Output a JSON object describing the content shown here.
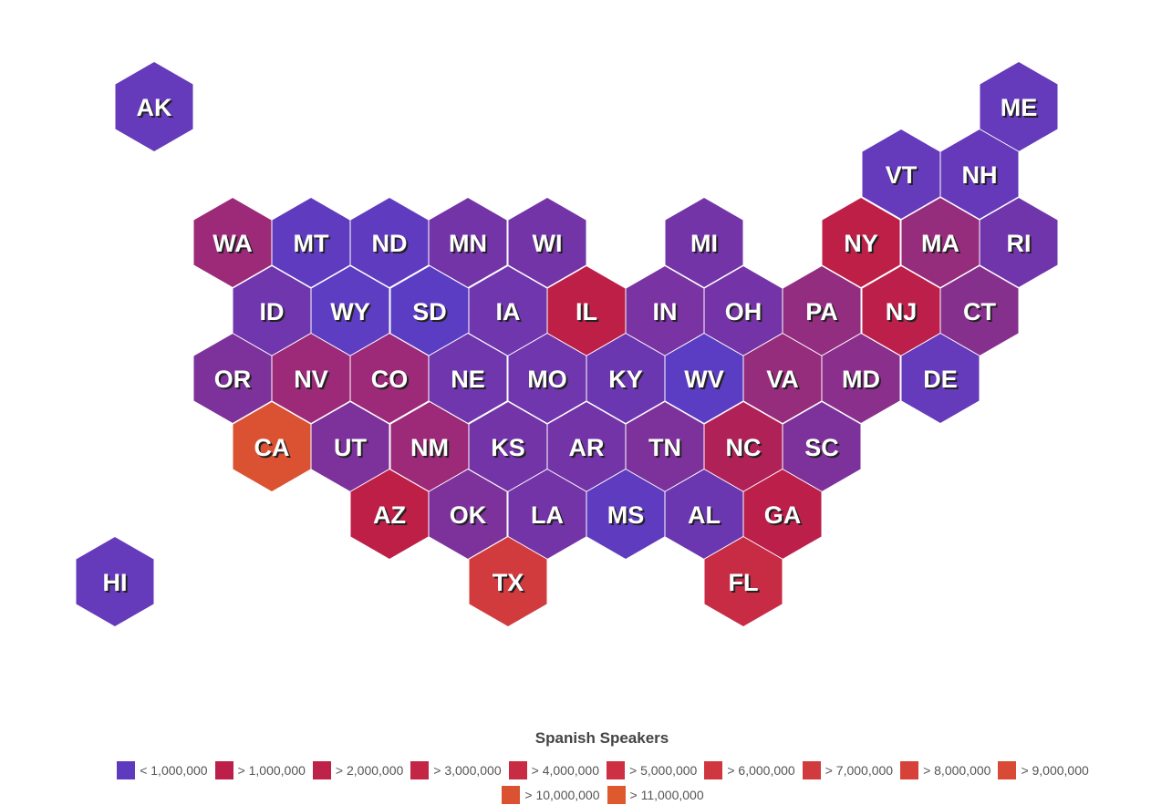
{
  "legend": {
    "title": "Spanish Speakers",
    "items": [
      {
        "label": "< 1,000,000",
        "color": "#5e3bbe"
      },
      {
        "label": "> 1,000,000",
        "color": "#bb1f4a"
      },
      {
        "label": "> 2,000,000",
        "color": "#bf2248"
      },
      {
        "label": "> 3,000,000",
        "color": "#c32645"
      },
      {
        "label": "> 4,000,000",
        "color": "#c82b44"
      },
      {
        "label": "> 5,000,000",
        "color": "#cc3042"
      },
      {
        "label": "> 6,000,000",
        "color": "#cf3640"
      },
      {
        "label": "> 7,000,000",
        "color": "#d23b3d"
      },
      {
        "label": "> 8,000,000",
        "color": "#d6423a"
      },
      {
        "label": "> 9,000,000",
        "color": "#d84a35"
      },
      {
        "label": "> 10,000,000",
        "color": "#db5232"
      },
      {
        "label": "> 11,000,000",
        "color": "#de5a2e"
      }
    ]
  },
  "states": [
    {
      "code": "AK",
      "color": "#653abb"
    },
    {
      "code": "ME",
      "color": "#653abb"
    },
    {
      "code": "VT",
      "color": "#653abb"
    },
    {
      "code": "NH",
      "color": "#6539b9"
    },
    {
      "code": "WA",
      "color": "#9c2a78"
    },
    {
      "code": "MT",
      "color": "#5f3cbf"
    },
    {
      "code": "ND",
      "color": "#5f3cbf"
    },
    {
      "code": "MN",
      "color": "#7334a8"
    },
    {
      "code": "WI",
      "color": "#7334a8"
    },
    {
      "code": "MI",
      "color": "#7334a8"
    },
    {
      "code": "NY",
      "color": "#bd1f47"
    },
    {
      "code": "MA",
      "color": "#962c7c"
    },
    {
      "code": "RI",
      "color": "#7135ab"
    },
    {
      "code": "ID",
      "color": "#6f36ad"
    },
    {
      "code": "WY",
      "color": "#5d3dc2"
    },
    {
      "code": "SD",
      "color": "#5b3dc4"
    },
    {
      "code": "IA",
      "color": "#6f36ad"
    },
    {
      "code": "IL",
      "color": "#bd1f47"
    },
    {
      "code": "IN",
      "color": "#7a33a2"
    },
    {
      "code": "OH",
      "color": "#7434a7"
    },
    {
      "code": "PA",
      "color": "#932d80"
    },
    {
      "code": "NJ",
      "color": "#bb1f4a"
    },
    {
      "code": "CT",
      "color": "#86308e"
    },
    {
      "code": "OR",
      "color": "#7d329b"
    },
    {
      "code": "NV",
      "color": "#9c2a78"
    },
    {
      "code": "CO",
      "color": "#9c2a78"
    },
    {
      "code": "NE",
      "color": "#6f36ad"
    },
    {
      "code": "MO",
      "color": "#6f36ad"
    },
    {
      "code": "KY",
      "color": "#6b37b1"
    },
    {
      "code": "WV",
      "color": "#5b3dc4"
    },
    {
      "code": "VA",
      "color": "#962c7c"
    },
    {
      "code": "MD",
      "color": "#8b2f8c"
    },
    {
      "code": "DE",
      "color": "#653abb"
    },
    {
      "code": "CA",
      "color": "#db5232"
    },
    {
      "code": "UT",
      "color": "#7d329b"
    },
    {
      "code": "NM",
      "color": "#9c2a78"
    },
    {
      "code": "KS",
      "color": "#7334a8"
    },
    {
      "code": "AR",
      "color": "#7334a8"
    },
    {
      "code": "TN",
      "color": "#7d329b"
    },
    {
      "code": "NC",
      "color": "#b02158"
    },
    {
      "code": "SC",
      "color": "#7d329b"
    },
    {
      "code": "AZ",
      "color": "#bd1f47"
    },
    {
      "code": "OK",
      "color": "#7d329b"
    },
    {
      "code": "LA",
      "color": "#7334a8"
    },
    {
      "code": "MS",
      "color": "#5f3cbf"
    },
    {
      "code": "AL",
      "color": "#6b37b1"
    },
    {
      "code": "GA",
      "color": "#bb1f4a"
    },
    {
      "code": "HI",
      "color": "#653abb"
    },
    {
      "code": "TX",
      "color": "#d23b3d"
    },
    {
      "code": "FL",
      "color": "#c82b44"
    }
  ]
}
